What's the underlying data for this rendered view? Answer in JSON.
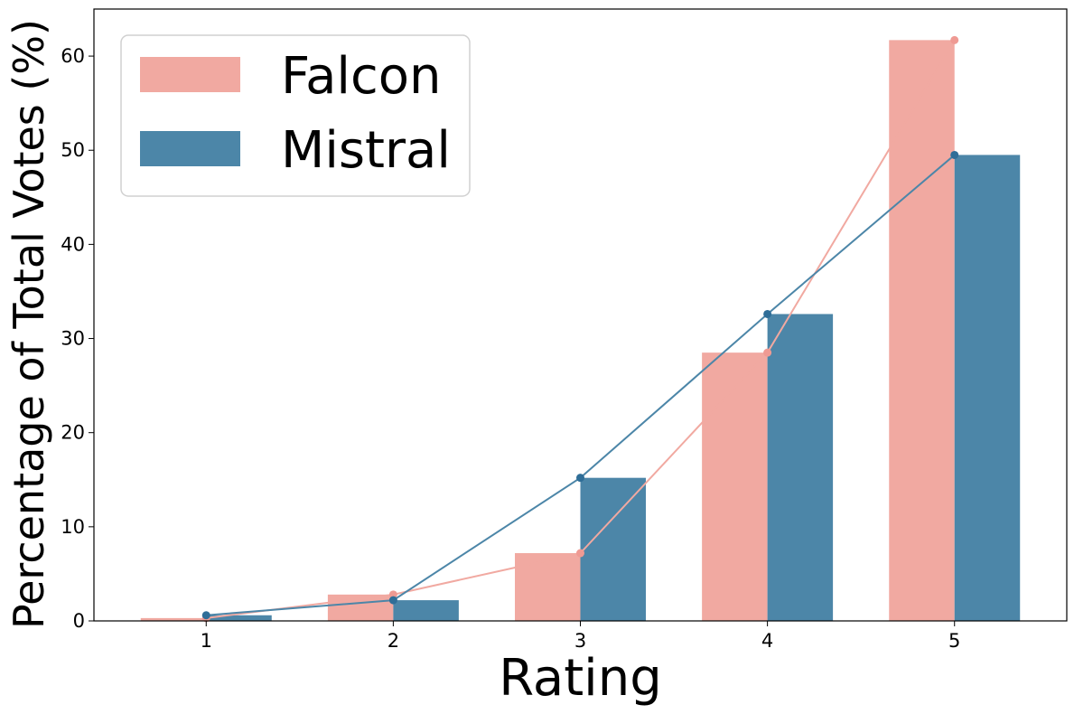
{
  "chart_data": {
    "type": "bar",
    "title": "",
    "xlabel": "Rating",
    "ylabel": "Percentage of Total Votes (%)",
    "categories": [
      "1",
      "2",
      "3",
      "4",
      "5"
    ],
    "ylim": [
      0,
      65
    ],
    "yticks": [
      0,
      10,
      20,
      30,
      40,
      50,
      60
    ],
    "grid": false,
    "legend_position": "top-left",
    "series": [
      {
        "name": "Falcon",
        "color": "#F1A9A1",
        "line_color": "#EF9A93",
        "values": [
          0.3,
          2.8,
          7.2,
          28.5,
          61.7
        ]
      },
      {
        "name": "Mistral",
        "color": "#4C86A8",
        "line_color": "#2F6E98",
        "values": [
          0.6,
          2.2,
          15.2,
          32.6,
          49.5
        ]
      }
    ],
    "overlay": "line-with-markers per series"
  }
}
